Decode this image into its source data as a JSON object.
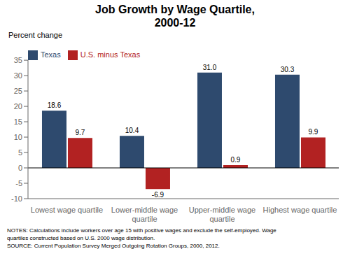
{
  "chart_data": {
    "type": "bar",
    "title": "Job Growth by Wage Quartile,\n2000-12",
    "y_label": "Percent change",
    "categories": [
      "Lowest wage quartile",
      "Lower-middle wage\nquartile",
      "Upper-middle wage\nquartile",
      "Highest wage quartile"
    ],
    "series": [
      {
        "name": "Texas",
        "color": "#2E4A6E",
        "values": [
          18.6,
          10.4,
          31.0,
          30.3
        ],
        "value_labels": [
          "18.6",
          "10.4",
          "31.0",
          "30.3"
        ]
      },
      {
        "name": "U.S. minus Texas",
        "color": "#B22222",
        "values": [
          9.7,
          -6.9,
          0.9,
          9.9
        ],
        "value_labels": [
          "9.7",
          "-6.9",
          "0.9",
          "9.9"
        ]
      }
    ],
    "ylim": [
      -10,
      35
    ],
    "yticks": [
      -10,
      -5,
      0,
      5,
      10,
      15,
      20,
      25,
      30,
      35
    ],
    "grid": false,
    "legend": "upper left",
    "data_labels": true,
    "annotations": [
      "NOTES: Calculations include workers over age 15 with positive wages and exclude the self-employed. Wage",
      "quartiles constructed based on U.S. 2000 wage distribution.",
      "SOURCE: Current Population Survey Merged Outgoing Rotation Groups, 2000, 2012."
    ]
  }
}
